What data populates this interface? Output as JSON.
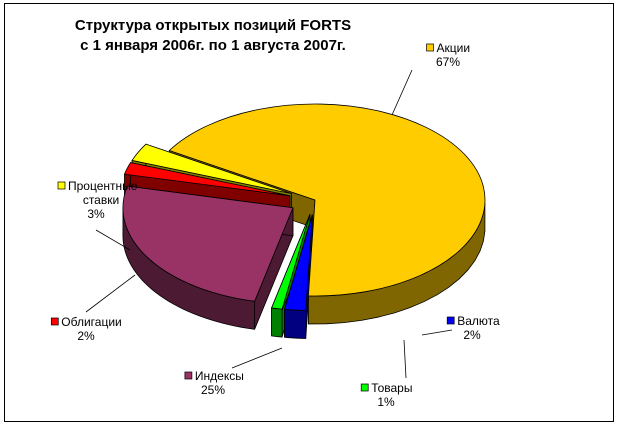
{
  "chart_data": {
    "type": "pie",
    "variant": "3d-exploded",
    "title": [
      "Структура открытых позиций FORTS",
      "с 1 января 2006г. по 1 августа 2007г."
    ],
    "slices": [
      {
        "name": "Акции",
        "value": 67,
        "label": "67%",
        "color": "#FFCC00",
        "side_color": "#806600",
        "legend_lines": [
          "Акции"
        ]
      },
      {
        "name": "Валюта",
        "value": 2,
        "label": "2%",
        "color": "#0000FF",
        "side_color": "#000080",
        "legend_lines": [
          "Валюта"
        ]
      },
      {
        "name": "Товары",
        "value": 1,
        "label": "1%",
        "color": "#00FF00",
        "side_color": "#008000",
        "legend_lines": [
          "Товары"
        ]
      },
      {
        "name": "Индексы",
        "value": 25,
        "label": "25%",
        "color": "#993366",
        "side_color": "#4D1A33",
        "legend_lines": [
          "Индексы"
        ]
      },
      {
        "name": "Облигации",
        "value": 2,
        "label": "2%",
        "color": "#FF0000",
        "side_color": "#800000",
        "legend_lines": [
          "Облигации"
        ]
      },
      {
        "name": "Процентные ставки",
        "value": 3,
        "label": "3%",
        "color": "#FFFF00",
        "side_color": "#808000",
        "legend_lines": [
          "Процентные",
          "ставки"
        ]
      }
    ]
  }
}
